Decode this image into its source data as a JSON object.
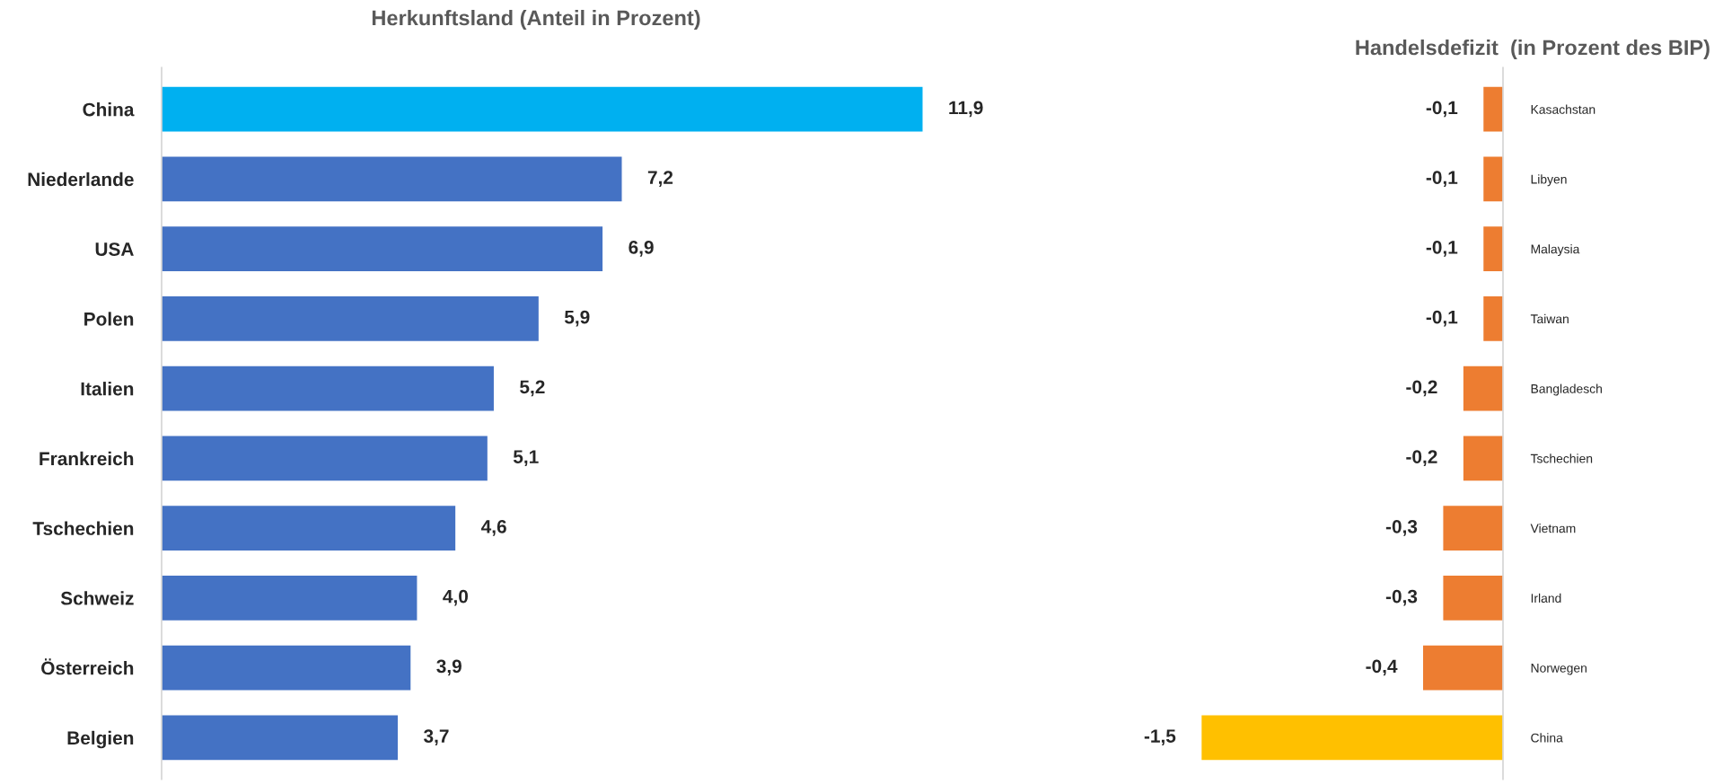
{
  "chart_data": [
    {
      "type": "bar",
      "orientation": "horizontal",
      "title": "Herkunftsland (Anteil in Prozent)",
      "categories": [
        "China",
        "Niederlande",
        "USA",
        "Polen",
        "Italien",
        "Frankreich",
        "Tschechien",
        "Schweiz",
        "Österreich",
        "Belgien"
      ],
      "values": [
        11.9,
        7.2,
        6.9,
        5.9,
        5.2,
        5.1,
        4.6,
        4.0,
        3.9,
        3.7
      ],
      "value_labels": [
        "11,9",
        "7,2",
        "6,9",
        "5,9",
        "5,2",
        "5,1",
        "4,6",
        "4,0",
        "3,9",
        "3,7"
      ],
      "colors": [
        "#00b0f0",
        "#4472c4",
        "#4472c4",
        "#4472c4",
        "#4472c4",
        "#4472c4",
        "#4472c4",
        "#4472c4",
        "#4472c4",
        "#4472c4"
      ],
      "tick_labels": "y",
      "grid": false,
      "legend": false
    },
    {
      "type": "bar",
      "orientation": "horizontal",
      "title": "Handelsdefizit  (in Prozent des BIP)",
      "categories": [
        "Kasachstan",
        "Libyen",
        "Malaysia",
        "Taiwan",
        "Bangladesch",
        "Tschechien",
        "Vietnam",
        "Irland",
        "Norwegen",
        "China"
      ],
      "values": [
        -0.1,
        -0.1,
        -0.1,
        -0.1,
        -0.2,
        -0.2,
        -0.3,
        -0.3,
        -0.4,
        -1.5
      ],
      "value_labels": [
        "-0,1",
        "-0,1",
        "-0,1",
        "-0,1",
        "-0,2",
        "-0,2",
        "-0,3",
        "-0,3",
        "-0,4",
        "-1,5"
      ],
      "colors": [
        "#ed7d31",
        "#ed7d31",
        "#ed7d31",
        "#ed7d31",
        "#ed7d31",
        "#ed7d31",
        "#ed7d31",
        "#ed7d31",
        "#ed7d31",
        "#ffc000"
      ],
      "tick_labels": "y",
      "grid": false,
      "legend": false
    }
  ]
}
